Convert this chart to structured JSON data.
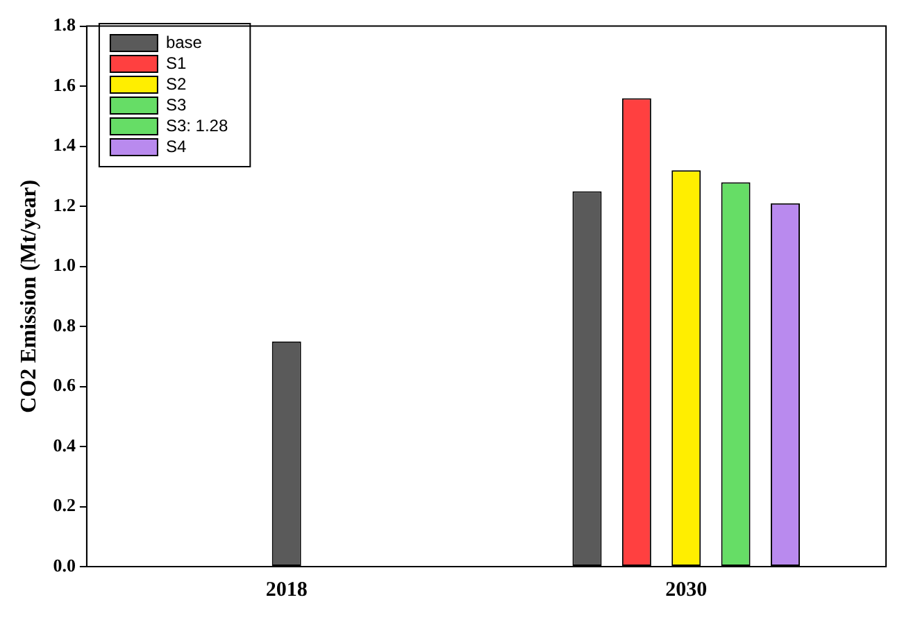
{
  "chart_data": {
    "type": "bar",
    "ylabel": "CO2 Emission (Mt/year)",
    "categories": [
      "2018",
      "2030"
    ],
    "series": [
      {
        "name": "base",
        "color": "#5a5a5a",
        "values": [
          0.75,
          1.25
        ]
      },
      {
        "name": "S1",
        "color": "#ff4040",
        "values": [
          null,
          1.56
        ]
      },
      {
        "name": "S2",
        "color": "#ffee00",
        "values": [
          null,
          1.32
        ]
      },
      {
        "name": "S3",
        "color": "#66dd66",
        "values": [
          null,
          null
        ]
      },
      {
        "name": "S3: 1.28",
        "color": "#66dd66",
        "values": [
          null,
          1.28
        ]
      },
      {
        "name": "S4",
        "color": "#b98aee",
        "values": [
          null,
          1.21
        ]
      }
    ],
    "ylim": [
      0,
      1.8
    ],
    "yticks": [
      {
        "value": 0,
        "label": "0.0"
      },
      0.2,
      0.4,
      0.6,
      0.8,
      {
        "value": 1,
        "label": "1.0"
      },
      1.2,
      1.4,
      1.6,
      1.8
    ],
    "grid": false,
    "legend": "top left"
  }
}
